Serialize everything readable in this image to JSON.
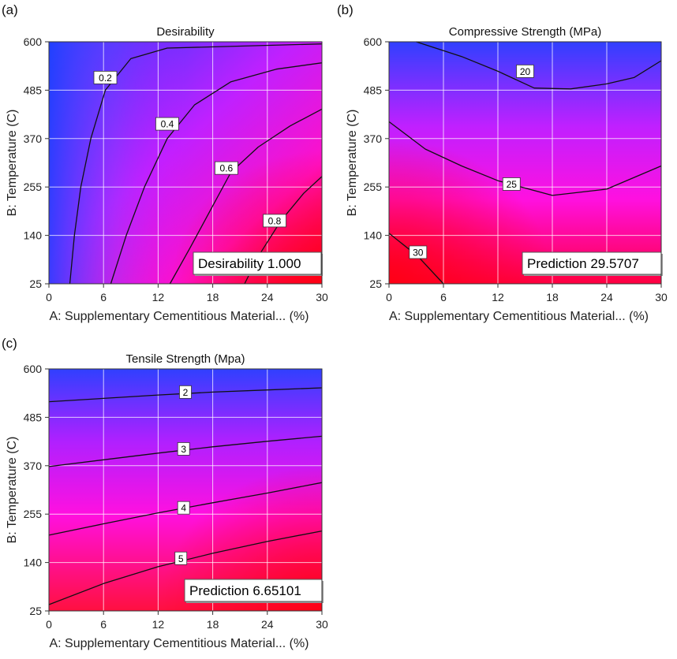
{
  "chart_data": [
    {
      "type": "heatmap",
      "panel_label": "(a)",
      "title": "Desirability",
      "xlabel": "A: Supplementary Cementitious Material... (%)",
      "ylabel": "B: Temperature (C)",
      "xlim": [
        0,
        30
      ],
      "ylim": [
        25,
        600
      ],
      "xticks": [
        "0",
        "6",
        "12",
        "18",
        "24",
        "30"
      ],
      "yticks": [
        "25",
        "140",
        "255",
        "370",
        "485",
        "600"
      ],
      "grid": true,
      "colors": {
        "low": "#1f3cff",
        "mid": "#ff00ff",
        "high": "#ff0010"
      },
      "contours": [
        {
          "label": "0.2",
          "label_at": [
            6.2,
            515
          ],
          "points": [
            [
              2.3,
              25
            ],
            [
              2.8,
              140
            ],
            [
              3.5,
              255
            ],
            [
              4.6,
              370
            ],
            [
              6.2,
              485
            ],
            [
              9,
              560
            ],
            [
              13,
              585
            ],
            [
              30,
              595
            ]
          ]
        },
        {
          "label": "0.4",
          "label_at": [
            13,
            405
          ],
          "points": [
            [
              6.8,
              25
            ],
            [
              8.5,
              140
            ],
            [
              10.5,
              255
            ],
            [
              13,
              370
            ],
            [
              16,
              450
            ],
            [
              20,
              505
            ],
            [
              25,
              535
            ],
            [
              30,
              550
            ]
          ]
        },
        {
          "label": "0.6",
          "label_at": [
            19.5,
            300
          ],
          "points": [
            [
              13.3,
              25
            ],
            [
              15.5,
              110
            ],
            [
              18,
              210
            ],
            [
              20,
              290
            ],
            [
              23,
              350
            ],
            [
              26.5,
              400
            ],
            [
              30,
              440
            ]
          ]
        },
        {
          "label": "0.8",
          "label_at": [
            24.8,
            175
          ],
          "points": [
            [
              21.5,
              25
            ],
            [
              23,
              90
            ],
            [
              25.5,
              175
            ],
            [
              28,
              240
            ],
            [
              30,
              280
            ]
          ]
        }
      ],
      "prediction_label": "Desirability",
      "prediction_value": "1.000"
    },
    {
      "type": "heatmap",
      "panel_label": "(b)",
      "title": "Compressive Strength (MPa)",
      "xlabel": "A: Supplementary Cementitious Material... (%)",
      "ylabel": "B: Temperature (C)",
      "xlim": [
        0,
        30
      ],
      "ylim": [
        25,
        600
      ],
      "xticks": [
        "0",
        "6",
        "12",
        "18",
        "24",
        "30"
      ],
      "yticks": [
        "25",
        "140",
        "255",
        "370",
        "485",
        "600"
      ],
      "grid": true,
      "colors": {
        "low": "#1f3cff",
        "mid": "#ff00ff",
        "high": "#ff0010"
      },
      "contours": [
        {
          "label": "20",
          "label_at": [
            15,
            530
          ],
          "points": [
            [
              3,
              600
            ],
            [
              8,
              565
            ],
            [
              12,
              530
            ],
            [
              16,
              490
            ],
            [
              20,
              488
            ],
            [
              24,
              500
            ],
            [
              27,
              515
            ],
            [
              30,
              555
            ]
          ]
        },
        {
          "label": "25",
          "label_at": [
            13.5,
            262
          ],
          "points": [
            [
              0,
              410
            ],
            [
              4,
              345
            ],
            [
              8,
              305
            ],
            [
              12,
              270
            ],
            [
              18,
              235
            ],
            [
              24,
              250
            ],
            [
              30,
              305
            ]
          ]
        },
        {
          "label": "30",
          "label_at": [
            3.2,
            100
          ],
          "points": [
            [
              0,
              145
            ],
            [
              3.2,
              90
            ],
            [
              6,
              25
            ]
          ]
        }
      ],
      "prediction_label": "Prediction",
      "prediction_value": "29.5707"
    },
    {
      "type": "heatmap",
      "panel_label": "(c)",
      "title": "Tensile Strength (Mpa)",
      "xlabel": "A: Supplementary Cementitious Material... (%)",
      "ylabel": "B: Temperature (C)",
      "xlim": [
        0,
        30
      ],
      "ylim": [
        25,
        600
      ],
      "xticks": [
        "0",
        "6",
        "12",
        "18",
        "24",
        "30"
      ],
      "yticks": [
        "25",
        "140",
        "255",
        "370",
        "485",
        "600"
      ],
      "grid": true,
      "colors": {
        "low": "#1f3cff",
        "mid": "#ff00ff",
        "high": "#ff0010"
      },
      "contours": [
        {
          "label": "2",
          "label_at": [
            15,
            545
          ],
          "points": [
            [
              0,
              522
            ],
            [
              6,
              530
            ],
            [
              12,
              538
            ],
            [
              18,
              545
            ],
            [
              24,
              550
            ],
            [
              30,
              555
            ]
          ]
        },
        {
          "label": "3",
          "label_at": [
            14.8,
            410
          ],
          "points": [
            [
              0,
              368
            ],
            [
              6,
              384
            ],
            [
              12,
              400
            ],
            [
              18,
              415
            ],
            [
              24,
              428
            ],
            [
              30,
              440
            ]
          ]
        },
        {
          "label": "4",
          "label_at": [
            14.8,
            270
          ],
          "points": [
            [
              0,
              205
            ],
            [
              6,
              232
            ],
            [
              12,
              258
            ],
            [
              18,
              282
            ],
            [
              24,
              305
            ],
            [
              30,
              330
            ]
          ]
        },
        {
          "label": "5",
          "label_at": [
            14.5,
            150
          ],
          "points": [
            [
              0,
              40
            ],
            [
              6,
              90
            ],
            [
              12,
              130
            ],
            [
              18,
              162
            ],
            [
              24,
              190
            ],
            [
              30,
              215
            ]
          ]
        }
      ],
      "prediction_label": "Prediction",
      "prediction_value": "6.65101"
    }
  ]
}
